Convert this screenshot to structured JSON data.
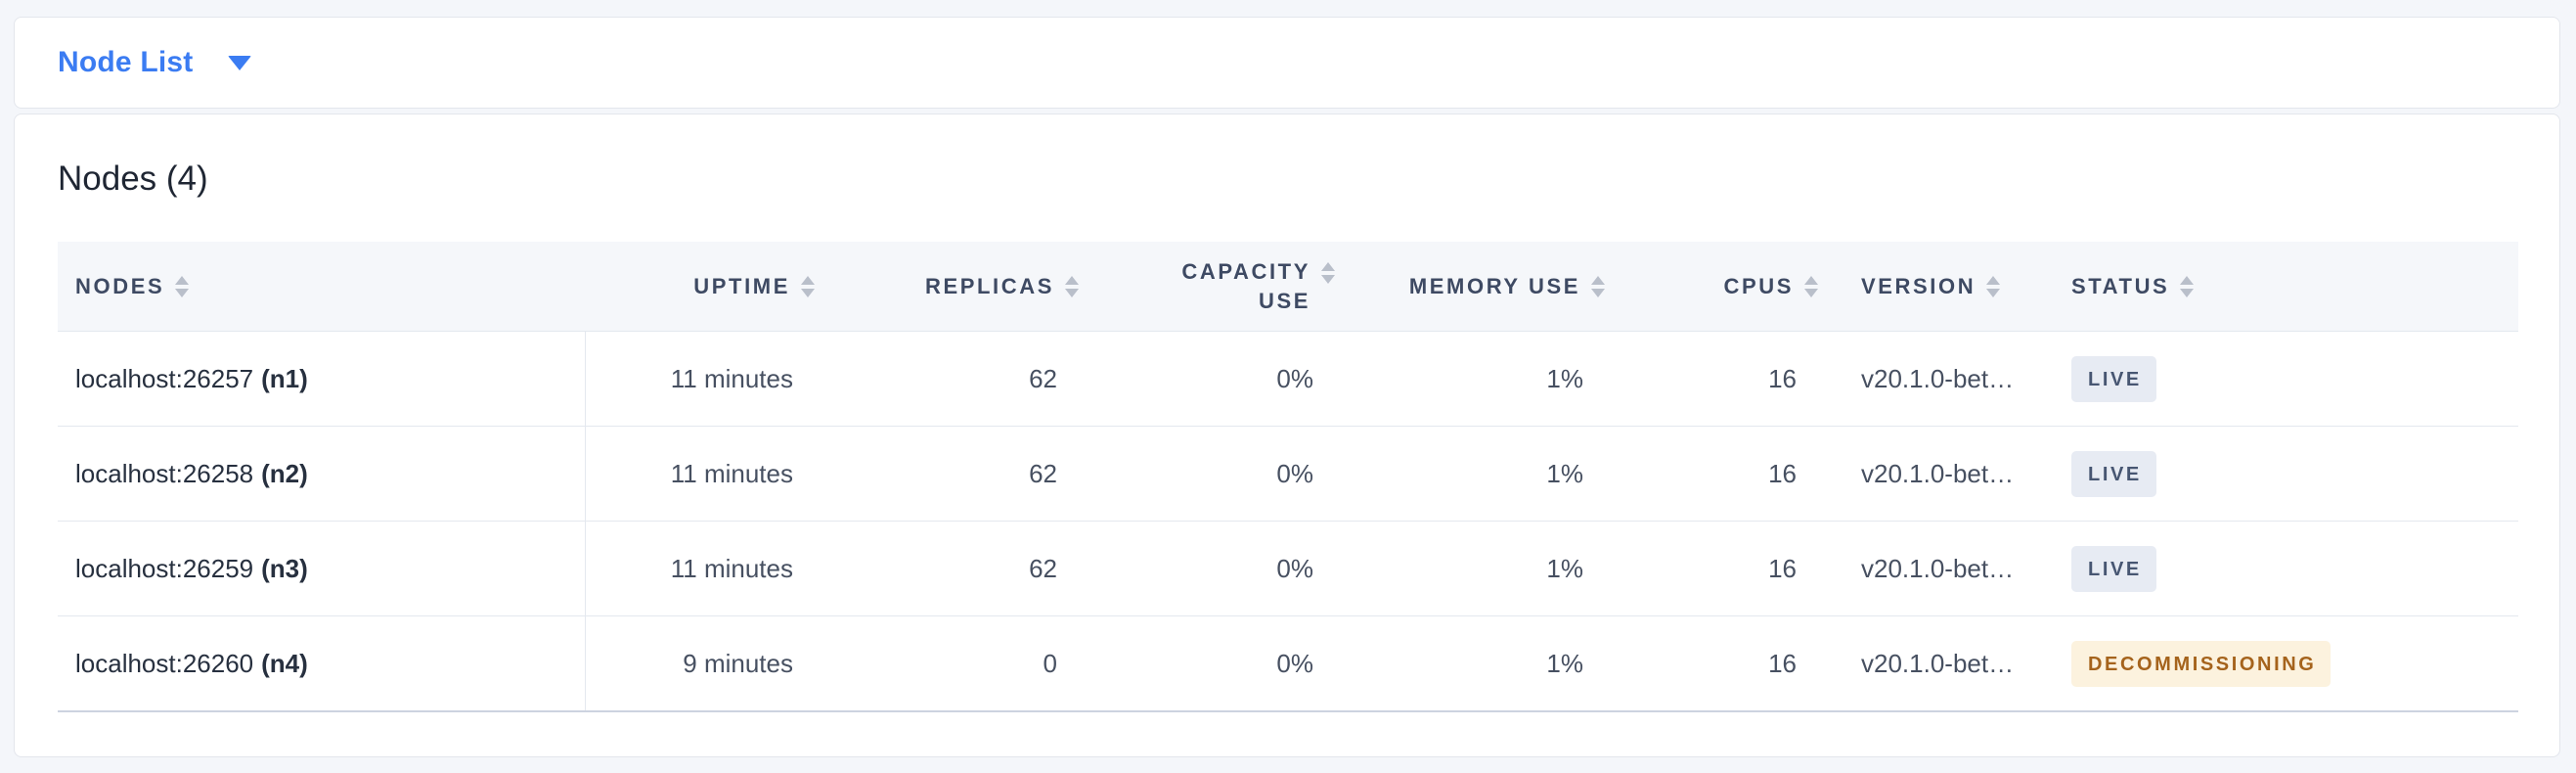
{
  "toolbar": {
    "title": "Node List",
    "dropdown_icon": "caret-down-icon"
  },
  "main": {
    "heading": "Nodes (4)",
    "table": {
      "sort_icon": "sort-arrows-icon",
      "columns": [
        {
          "key": "nodes",
          "label": "NODES",
          "align": "left"
        },
        {
          "key": "uptime",
          "label": "UPTIME",
          "align": "right"
        },
        {
          "key": "replicas",
          "label": "REPLICAS",
          "align": "right"
        },
        {
          "key": "capacity_use",
          "label": "CAPACITY USE",
          "align": "right"
        },
        {
          "key": "memory_use",
          "label": "MEMORY USE",
          "align": "right"
        },
        {
          "key": "cpus",
          "label": "CPUS",
          "align": "right"
        },
        {
          "key": "version",
          "label": "VERSION",
          "align": "left"
        },
        {
          "key": "status",
          "label": "STATUS",
          "align": "left"
        }
      ],
      "rows": [
        {
          "address": "localhost:26257",
          "node_id": "(n1)",
          "uptime": "11 minutes",
          "replicas": "62",
          "capacity_use": "0%",
          "memory_use": "1%",
          "cpus": "16",
          "version": "v20.1.0-bet…",
          "status": "LIVE",
          "status_kind": "live"
        },
        {
          "address": "localhost:26258",
          "node_id": "(n2)",
          "uptime": "11 minutes",
          "replicas": "62",
          "capacity_use": "0%",
          "memory_use": "1%",
          "cpus": "16",
          "version": "v20.1.0-bet…",
          "status": "LIVE",
          "status_kind": "live"
        },
        {
          "address": "localhost:26259",
          "node_id": "(n3)",
          "uptime": "11 minutes",
          "replicas": "62",
          "capacity_use": "0%",
          "memory_use": "1%",
          "cpus": "16",
          "version": "v20.1.0-bet…",
          "status": "LIVE",
          "status_kind": "live"
        },
        {
          "address": "localhost:26260",
          "node_id": "(n4)",
          "uptime": "9 minutes",
          "replicas": "0",
          "capacity_use": "0%",
          "memory_use": "1%",
          "cpus": "16",
          "version": "v20.1.0-bet…",
          "status": "DECOMMISSIONING",
          "status_kind": "decommissioning"
        }
      ]
    }
  },
  "colors": {
    "accent_blue": "#3b7cf2",
    "page_bg": "#f4f6fa",
    "header_row_bg": "#f5f7fa",
    "badge_live_bg": "#e7ebf3",
    "badge_live_text": "#475672",
    "badge_decommissioning_bg": "#fcf2de",
    "badge_decommissioning_text": "#a5631c"
  }
}
